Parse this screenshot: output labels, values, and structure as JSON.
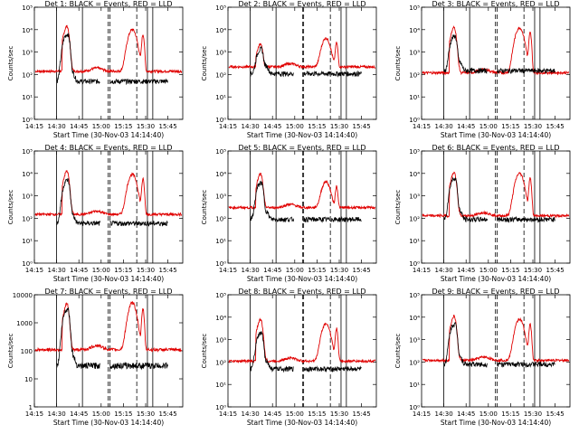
{
  "colors": {
    "events": "#000000",
    "lld": "#e00000",
    "axes": "#000000",
    "background": "#ffffff"
  },
  "chart_data": [
    {
      "type": "line",
      "det": 1,
      "title": "Det 1: BLACK = Events, RED = LLD",
      "xlabel": "Start Time (30-Nov-03 14:14:40)",
      "ylabel": "Counts/sec",
      "x_ticks": [
        "14:15",
        "14:30",
        "14:45",
        "15:00",
        "15:15",
        "15:30",
        "15:45"
      ],
      "y_ticks": [
        "10⁰",
        "10¹",
        "10²",
        "10³",
        "10⁴",
        "10⁵"
      ],
      "y_scale": "log",
      "ylim": [
        1,
        100000
      ],
      "lld_base": 140,
      "lld_peak1": 9000,
      "lld_peak2": 10000,
      "ev_peak": 5000,
      "ev_base": 50,
      "vlines": [
        {
          "t": 14.5,
          "style": "solid"
        },
        {
          "t": 14.79,
          "style": "solid"
        },
        {
          "t": 15.08,
          "style": "dash"
        },
        {
          "t": 15.1,
          "style": "dash"
        },
        {
          "t": 15.4,
          "style": "dash"
        },
        {
          "t": 15.52,
          "style": "solid"
        },
        {
          "t": 15.58,
          "style": "solid"
        }
      ]
    },
    {
      "type": "line",
      "det": 2,
      "title": "Det 2: BLACK = Events, RED = LLD",
      "xlabel": "Start Time (30-Nov-03 14:14:40)",
      "ylabel": "Counts/sec",
      "x_ticks": [
        "14:15",
        "14:30",
        "14:45",
        "15:00",
        "15:15",
        "15:30",
        "15:45"
      ],
      "y_ticks": [
        "10⁰",
        "10¹",
        "10²",
        "10³",
        "10⁴",
        "10⁵"
      ],
      "y_scale": "log",
      "ylim": [
        1,
        100000
      ],
      "lld_base": 220,
      "lld_peak1": 1500,
      "lld_peak2": 4000,
      "ev_peak": 1000,
      "ev_base": 110,
      "vlines": [
        {
          "t": 14.5,
          "style": "solid"
        },
        {
          "t": 14.79,
          "style": "solid"
        },
        {
          "t": 15.09,
          "style": "dash"
        },
        {
          "t": 15.1,
          "style": "dash"
        },
        {
          "t": 15.4,
          "style": "dash"
        },
        {
          "t": 15.52,
          "style": "solid"
        },
        {
          "t": 15.58,
          "style": "solid"
        }
      ]
    },
    {
      "type": "line",
      "det": 3,
      "title": "Det 3: BLACK = Events, RED = LLD",
      "xlabel": "Start Time (30-Nov-03 14:14:40)",
      "ylabel": "Counts/sec",
      "x_ticks": [
        "14:15",
        "14:30",
        "14:45",
        "15:00",
        "15:15",
        "15:30",
        "15:45"
      ],
      "y_ticks": [
        "10⁰",
        "10¹",
        "10²",
        "10³",
        "10⁴",
        "10⁵"
      ],
      "y_scale": "log",
      "ylim": [
        1,
        100000
      ],
      "lld_base": 120,
      "lld_peak1": 8000,
      "lld_peak2": 12000,
      "ev_peak": 4000,
      "ev_base": 150,
      "vlines": [
        {
          "t": 14.5,
          "style": "solid"
        },
        {
          "t": 14.79,
          "style": "solid"
        },
        {
          "t": 15.08,
          "style": "dash"
        },
        {
          "t": 15.1,
          "style": "dash"
        },
        {
          "t": 15.4,
          "style": "dash"
        },
        {
          "t": 15.52,
          "style": "solid"
        },
        {
          "t": 15.58,
          "style": "solid"
        }
      ]
    },
    {
      "type": "line",
      "det": 4,
      "title": "Det 4: BLACK = Events, RED = LLD",
      "xlabel": "Start Time (30-Nov-03 14:14:40)",
      "ylabel": "Counts/sec",
      "x_ticks": [
        "14:15",
        "14:30",
        "14:45",
        "15:00",
        "15:15",
        "15:30",
        "15:45"
      ],
      "y_ticks": [
        "10⁰",
        "10¹",
        "10²",
        "10³",
        "10⁴",
        "10⁵"
      ],
      "y_scale": "log",
      "ylim": [
        1,
        100000
      ],
      "lld_base": 150,
      "lld_peak1": 8000,
      "lld_peak2": 9000,
      "ev_peak": 4000,
      "ev_base": 60,
      "vlines": [
        {
          "t": 14.5,
          "style": "solid"
        },
        {
          "t": 14.79,
          "style": "solid"
        },
        {
          "t": 15.08,
          "style": "dash"
        },
        {
          "t": 15.1,
          "style": "dash"
        },
        {
          "t": 15.4,
          "style": "dash"
        },
        {
          "t": 15.52,
          "style": "solid"
        },
        {
          "t": 15.58,
          "style": "solid"
        }
      ]
    },
    {
      "type": "line",
      "det": 5,
      "title": "Det 5: BLACK = Events, RED = LLD",
      "xlabel": "Start Time (30-Nov-03 14:14:40)",
      "ylabel": "Counts/sec",
      "x_ticks": [
        "14:15",
        "14:30",
        "14:45",
        "15:00",
        "15:15",
        "15:30",
        "15:45"
      ],
      "y_ticks": [
        "10⁰",
        "10¹",
        "10²",
        "10³",
        "10⁴",
        "10⁵"
      ],
      "y_scale": "log",
      "ylim": [
        1,
        100000
      ],
      "lld_base": 300,
      "lld_peak1": 6000,
      "lld_peak2": 4000,
      "ev_peak": 3000,
      "ev_base": 90,
      "vlines": [
        {
          "t": 14.5,
          "style": "solid"
        },
        {
          "t": 14.79,
          "style": "solid"
        },
        {
          "t": 15.09,
          "style": "dash"
        },
        {
          "t": 15.1,
          "style": "dash"
        },
        {
          "t": 15.4,
          "style": "dash"
        },
        {
          "t": 15.52,
          "style": "solid"
        },
        {
          "t": 15.58,
          "style": "solid"
        }
      ]
    },
    {
      "type": "line",
      "det": 6,
      "title": "Det 6: BLACK = Events, RED = LLD",
      "xlabel": "Start Time (30-Nov-03 14:14:40)",
      "ylabel": "Counts/sec",
      "x_ticks": [
        "14:15",
        "14:30",
        "14:45",
        "15:00",
        "15:15",
        "15:30",
        "15:45"
      ],
      "y_ticks": [
        "10⁰",
        "10¹",
        "10²",
        "10³",
        "10⁴",
        "10⁵"
      ],
      "y_scale": "log",
      "ylim": [
        1,
        100000
      ],
      "lld_base": 130,
      "lld_peak1": 7000,
      "lld_peak2": 10000,
      "ev_peak": 5000,
      "ev_base": 90,
      "vlines": [
        {
          "t": 14.5,
          "style": "solid"
        },
        {
          "t": 14.79,
          "style": "solid"
        },
        {
          "t": 15.08,
          "style": "dash"
        },
        {
          "t": 15.1,
          "style": "dash"
        },
        {
          "t": 15.4,
          "style": "dash"
        },
        {
          "t": 15.52,
          "style": "solid"
        },
        {
          "t": 15.58,
          "style": "solid"
        }
      ]
    },
    {
      "type": "line",
      "det": 7,
      "title": "Det 7: BLACK = Events, RED = LLD",
      "xlabel": "Start Time (30-Nov-03 14:14:40)",
      "ylabel": "Counts/sec",
      "x_ticks": [
        "14:15",
        "14:30",
        "14:45",
        "15:00",
        "15:15",
        "15:30",
        "15:45"
      ],
      "y_ticks": [
        "1",
        "10",
        "100",
        "1000",
        "10000"
      ],
      "y_scale": "log",
      "ylim": [
        1,
        10000
      ],
      "lld_base": 110,
      "lld_peak1": 3000,
      "lld_peak2": 5000,
      "ev_peak": 2500,
      "ev_base": 30,
      "vlines": [
        {
          "t": 14.5,
          "style": "solid"
        },
        {
          "t": 14.79,
          "style": "solid"
        },
        {
          "t": 15.08,
          "style": "dash"
        },
        {
          "t": 15.1,
          "style": "dash"
        },
        {
          "t": 15.4,
          "style": "dash"
        },
        {
          "t": 15.52,
          "style": "solid"
        },
        {
          "t": 15.58,
          "style": "solid"
        }
      ]
    },
    {
      "type": "line",
      "det": 8,
      "title": "Det 8: BLACK = Events, RED = LLD",
      "xlabel": "Start Time (30-Nov-03 14:14:40)",
      "ylabel": "Counts/sec",
      "x_ticks": [
        "14:15",
        "14:30",
        "14:45",
        "15:00",
        "15:15",
        "15:30",
        "15:45"
      ],
      "y_ticks": [
        "10⁰",
        "10¹",
        "10²",
        "10³",
        "10⁴",
        "10⁵"
      ],
      "y_scale": "log",
      "ylim": [
        1,
        100000
      ],
      "lld_base": 110,
      "lld_peak1": 5000,
      "lld_peak2": 5000,
      "ev_peak": 1500,
      "ev_base": 50,
      "vlines": [
        {
          "t": 14.5,
          "style": "solid"
        },
        {
          "t": 14.79,
          "style": "solid"
        },
        {
          "t": 15.09,
          "style": "dash"
        },
        {
          "t": 15.1,
          "style": "dash"
        },
        {
          "t": 15.4,
          "style": "dash"
        },
        {
          "t": 15.52,
          "style": "solid"
        },
        {
          "t": 15.58,
          "style": "solid"
        }
      ]
    },
    {
      "type": "line",
      "det": 9,
      "title": "Det 9: BLACK = Events, RED = LLD",
      "xlabel": "Start Time (30-Nov-03 14:14:40)",
      "ylabel": "Counts/sec",
      "x_ticks": [
        "14:15",
        "14:30",
        "14:45",
        "15:00",
        "15:15",
        "15:30",
        "15:45"
      ],
      "y_ticks": [
        "10⁰",
        "10¹",
        "10²",
        "10³",
        "10⁴",
        "10⁵"
      ],
      "y_scale": "log",
      "ylim": [
        1,
        100000
      ],
      "lld_base": 120,
      "lld_peak1": 7000,
      "lld_peak2": 8000,
      "ev_peak": 4000,
      "ev_base": 80,
      "vlines": [
        {
          "t": 14.5,
          "style": "solid"
        },
        {
          "t": 14.79,
          "style": "solid"
        },
        {
          "t": 15.08,
          "style": "dash"
        },
        {
          "t": 15.1,
          "style": "dash"
        },
        {
          "t": 15.4,
          "style": "dash"
        },
        {
          "t": 15.52,
          "style": "solid"
        },
        {
          "t": 15.58,
          "style": "solid"
        }
      ]
    }
  ]
}
